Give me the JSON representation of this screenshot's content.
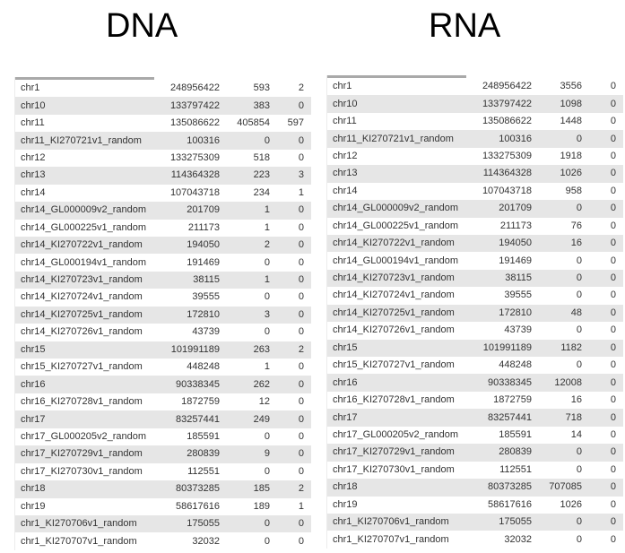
{
  "dna": {
    "title": "DNA",
    "rows": [
      [
        "chr1",
        "248956422",
        "593",
        "2"
      ],
      [
        "chr10",
        "133797422",
        "383",
        "0"
      ],
      [
        "chr11",
        "135086622",
        "405854",
        "597"
      ],
      [
        "chr11_KI270721v1_random",
        "100316",
        "0",
        "0"
      ],
      [
        "chr12",
        "133275309",
        "518",
        "0"
      ],
      [
        "chr13",
        "114364328",
        "223",
        "3"
      ],
      [
        "chr14",
        "107043718",
        "234",
        "1"
      ],
      [
        "chr14_GL000009v2_random",
        "201709",
        "1",
        "0"
      ],
      [
        "chr14_GL000225v1_random",
        "211173",
        "1",
        "0"
      ],
      [
        "chr14_KI270722v1_random",
        "194050",
        "2",
        "0"
      ],
      [
        "chr14_GL000194v1_random",
        "191469",
        "0",
        "0"
      ],
      [
        "chr14_KI270723v1_random",
        "38115",
        "1",
        "0"
      ],
      [
        "chr14_KI270724v1_random",
        "39555",
        "0",
        "0"
      ],
      [
        "chr14_KI270725v1_random",
        "172810",
        "3",
        "0"
      ],
      [
        "chr14_KI270726v1_random",
        "43739",
        "0",
        "0"
      ],
      [
        "chr15",
        "101991189",
        "263",
        "2"
      ],
      [
        "chr15_KI270727v1_random",
        "448248",
        "1",
        "0"
      ],
      [
        "chr16",
        "90338345",
        "262",
        "0"
      ],
      [
        "chr16_KI270728v1_random",
        "1872759",
        "12",
        "0"
      ],
      [
        "chr17",
        "83257441",
        "249",
        "0"
      ],
      [
        "chr17_GL000205v2_random",
        "185591",
        "0",
        "0"
      ],
      [
        "chr17_KI270729v1_random",
        "280839",
        "9",
        "0"
      ],
      [
        "chr17_KI270730v1_random",
        "112551",
        "0",
        "0"
      ],
      [
        "chr18",
        "80373285",
        "185",
        "2"
      ],
      [
        "chr19",
        "58617616",
        "189",
        "1"
      ],
      [
        "chr1_KI270706v1_random",
        "175055",
        "0",
        "0"
      ],
      [
        "chr1_KI270707v1_random",
        "32032",
        "0",
        "0"
      ]
    ]
  },
  "rna": {
    "title": "RNA",
    "rows": [
      [
        "chr1",
        "248956422",
        "3556",
        "0"
      ],
      [
        "chr10",
        "133797422",
        "1098",
        "0"
      ],
      [
        "chr11",
        "135086622",
        "1448",
        "0"
      ],
      [
        "chr11_KI270721v1_random",
        "100316",
        "0",
        "0"
      ],
      [
        "chr12",
        "133275309",
        "1918",
        "0"
      ],
      [
        "chr13",
        "114364328",
        "1026",
        "0"
      ],
      [
        "chr14",
        "107043718",
        "958",
        "0"
      ],
      [
        "chr14_GL000009v2_random",
        "201709",
        "0",
        "0"
      ],
      [
        "chr14_GL000225v1_random",
        "211173",
        "76",
        "0"
      ],
      [
        "chr14_KI270722v1_random",
        "194050",
        "16",
        "0"
      ],
      [
        "chr14_GL000194v1_random",
        "191469",
        "0",
        "0"
      ],
      [
        "chr14_KI270723v1_random",
        "38115",
        "0",
        "0"
      ],
      [
        "chr14_KI270724v1_random",
        "39555",
        "0",
        "0"
      ],
      [
        "chr14_KI270725v1_random",
        "172810",
        "48",
        "0"
      ],
      [
        "chr14_KI270726v1_random",
        "43739",
        "0",
        "0"
      ],
      [
        "chr15",
        "101991189",
        "1182",
        "0"
      ],
      [
        "chr15_KI270727v1_random",
        "448248",
        "0",
        "0"
      ],
      [
        "chr16",
        "90338345",
        "12008",
        "0"
      ],
      [
        "chr16_KI270728v1_random",
        "1872759",
        "16",
        "0"
      ],
      [
        "chr17",
        "83257441",
        "718",
        "0"
      ],
      [
        "chr17_GL000205v2_random",
        "185591",
        "14",
        "0"
      ],
      [
        "chr17_KI270729v1_random",
        "280839",
        "0",
        "0"
      ],
      [
        "chr17_KI270730v1_random",
        "112551",
        "0",
        "0"
      ],
      [
        "chr18",
        "80373285",
        "707085",
        "0"
      ],
      [
        "chr19",
        "58617616",
        "1026",
        "0"
      ],
      [
        "chr1_KI270706v1_random",
        "175055",
        "0",
        "0"
      ],
      [
        "chr1_KI270707v1_random",
        "32032",
        "0",
        "0"
      ]
    ]
  }
}
